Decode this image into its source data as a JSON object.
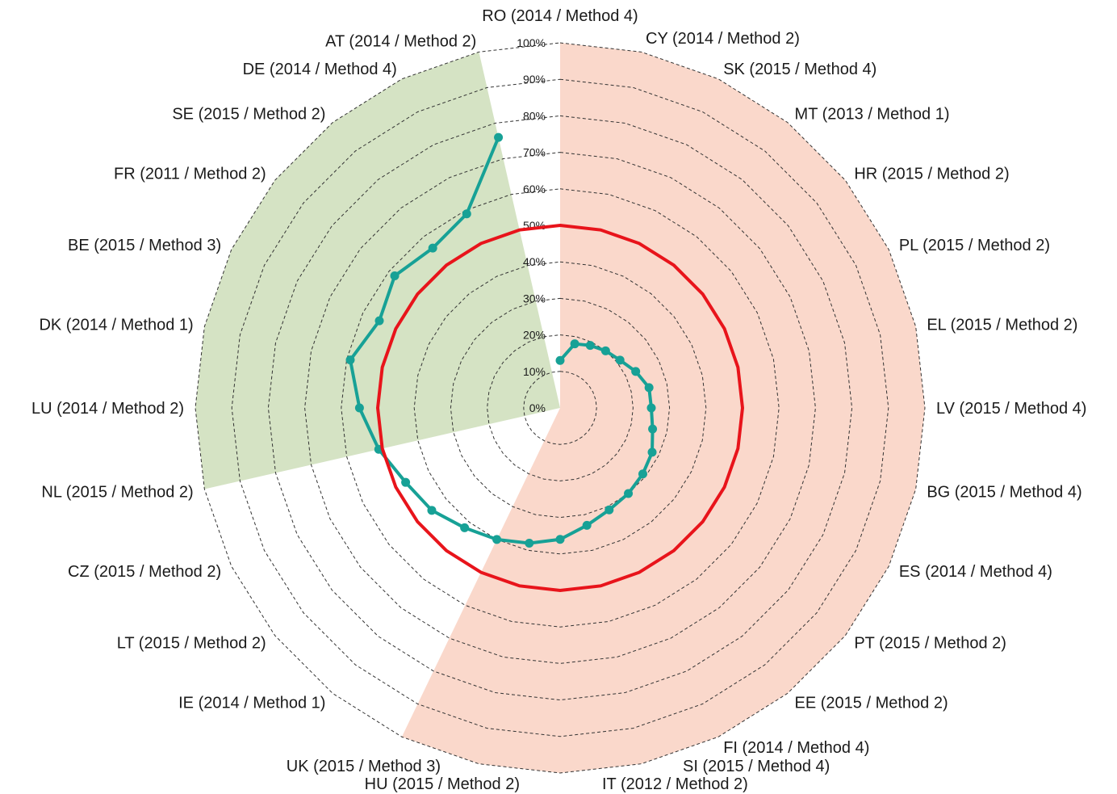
{
  "chart_data": {
    "type": "radar",
    "title": "",
    "categories": [
      "RO (2014 / Method 4)",
      "CY (2014 / Method 2)",
      "SK (2015 / Method 4)",
      "MT (2013 / Method 1)",
      "HR (2015 / Method 2)",
      "PL (2015 / Method 2)",
      "EL (2015 / Method 2)",
      "LV (2015 / Method 4)",
      "BG (2015 / Method 4)",
      "ES (2014 / Method 4)",
      "PT (2015 / Method 2)",
      "EE (2015 / Method 2)",
      "FI (2014 / Method 4)",
      "SI (2015 / Method 4)",
      "IT (2012 / Method 2)",
      "HU (2015 / Method 2)",
      "UK (2015 / Method 3)",
      "IE (2014 / Method 1)",
      "LT (2015 / Method 2)",
      "CZ (2015 / Method 2)",
      "NL (2015 / Method 2)",
      "LU (2014 / Method 2)",
      "DK (2014 / Method 1)",
      "BE (2015 / Method 3)",
      "FR (2011 / Method 2)",
      "SE (2015 / Method 2)",
      "DE (2014 / Method 4)",
      "AT (2014 / Method 2)"
    ],
    "tick_labels": [
      "0%",
      "10%",
      "20%",
      "30%",
      "40%",
      "50%",
      "60%",
      "70%",
      "80%",
      "90%",
      "100%"
    ],
    "rlim": [
      0,
      100
    ],
    "series": [
      {
        "values": [
          13,
          18,
          19,
          20,
          21,
          23,
          25,
          25,
          26,
          28,
          29,
          30,
          31,
          33,
          36,
          38,
          40,
          42,
          45,
          47,
          51,
          55,
          59,
          55,
          58,
          56,
          59,
          76
        ],
        "color": "#17A196"
      },
      {
        "values": [
          50,
          50,
          50,
          50,
          50,
          50,
          50,
          50,
          50,
          50,
          50,
          50,
          50,
          50,
          50,
          50,
          50,
          50,
          50,
          50,
          50,
          50,
          50,
          50,
          50,
          50,
          50,
          50
        ],
        "color": "#E8141B"
      }
    ],
    "bands": [
      {
        "from": "RO (2014 / Method 4)",
        "to": "UK (2015 / Method 3)",
        "color": "#FAD8CB"
      },
      {
        "from": "NL (2015 / Method 2)",
        "to": "AT (2014 / Method 2)",
        "color": "#D5E3C4"
      }
    ],
    "grid": true,
    "legend": "none"
  }
}
